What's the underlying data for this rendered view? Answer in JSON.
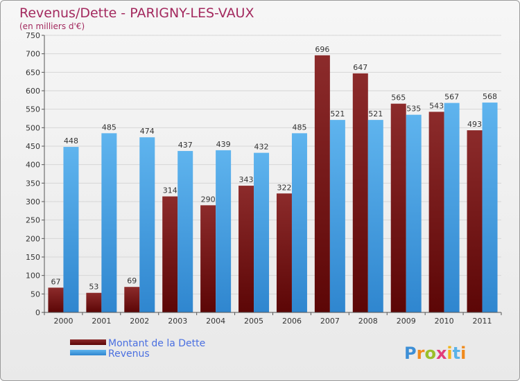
{
  "chart_data": {
    "type": "bar",
    "title": "Revenus/Dette - PARIGNY-LES-VAUX",
    "subtitle": "(en milliers d'€)",
    "categories": [
      "2000",
      "2001",
      "2002",
      "2003",
      "2004",
      "2005",
      "2006",
      "2007",
      "2008",
      "2009",
      "2010",
      "2011"
    ],
    "series": [
      {
        "name": "Montant de la Dette",
        "color": "#7a1818",
        "values": [
          67,
          53,
          69,
          314,
          290,
          343,
          322,
          696,
          647,
          565,
          543,
          493
        ]
      },
      {
        "name": "Revenus",
        "color": "#4aa3e6",
        "values": [
          448,
          485,
          474,
          437,
          439,
          432,
          485,
          521,
          521,
          535,
          567,
          568
        ]
      }
    ],
    "ylim": [
      0,
      750
    ],
    "yticks": [
      0,
      50,
      100,
      150,
      200,
      250,
      300,
      350,
      400,
      450,
      500,
      550,
      600,
      650,
      700,
      750
    ],
    "grid": true,
    "legend": "bottom-left"
  },
  "logo": {
    "letters": [
      "P",
      "r",
      "o",
      "x",
      "i",
      "t",
      "i"
    ],
    "colors": [
      "#3d8fd6",
      "#f08a1c",
      "#9bbf2a",
      "#e23d7a",
      "#f2b51a",
      "#5bb3e8",
      "#f08a1c"
    ]
  }
}
